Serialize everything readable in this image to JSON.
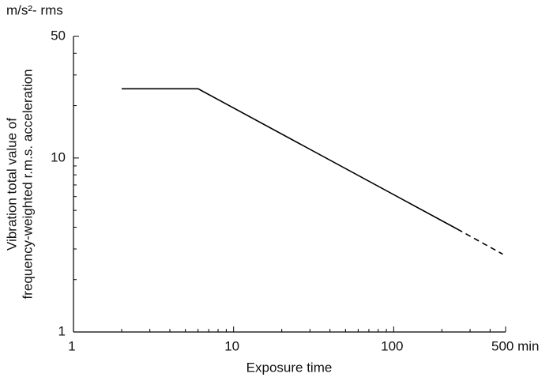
{
  "chart_data": {
    "type": "line",
    "y_unit": "m/s²- rms",
    "y_label": [
      "Vibration total value of",
      "frequency-weighted r.m.s. acceleration"
    ],
    "x_label": "Exposure time",
    "log_x": true,
    "log_y": true,
    "xlim": [
      1,
      500
    ],
    "ylim": [
      1,
      50
    ],
    "xticks": [
      1,
      10,
      100,
      {
        "value": 500,
        "label": "500 min"
      }
    ],
    "yticks": [
      1,
      10,
      50
    ],
    "xminorticks": [
      2,
      3,
      4,
      5,
      6,
      7,
      8,
      9,
      20,
      30,
      40,
      50,
      60,
      70,
      80,
      90,
      200,
      300,
      400
    ],
    "yminorticks": [
      2,
      3,
      4,
      5,
      6,
      7,
      8,
      9,
      20,
      30,
      40
    ],
    "series": [
      {
        "color": "#000000",
        "dash": false,
        "x": [
          2,
          6,
          250
        ],
        "values": [
          25,
          25,
          3.9
        ]
      },
      {
        "color": "#000000",
        "dash": true,
        "x": [
          250,
          480
        ],
        "values": [
          3.9,
          2.8
        ]
      }
    ]
  }
}
